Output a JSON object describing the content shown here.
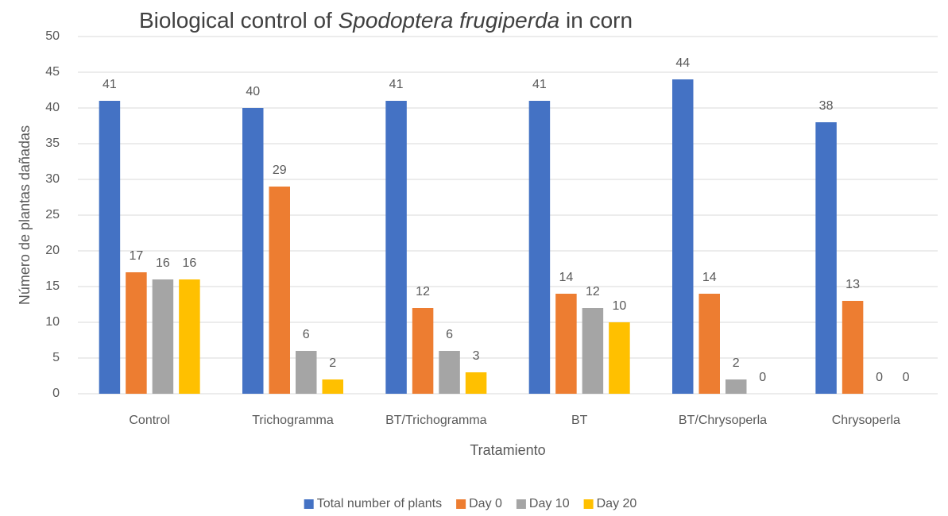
{
  "chart_data": {
    "type": "bar",
    "title": [
      "Biological control of ",
      "Spodoptera frugiperda",
      " in corn"
    ],
    "title_italic": [
      false,
      true,
      false
    ],
    "categories": [
      "Control",
      "Trichogramma",
      "BT/Trichogramma",
      "BT",
      "BT/Chrysoperla",
      "Chrysoperla"
    ],
    "series": [
      {
        "name": "Total number of plants",
        "color": "#4472c4",
        "values": [
          41,
          40,
          41,
          41,
          44,
          38
        ]
      },
      {
        "name": "Day 0",
        "color": "#ed7d31",
        "values": [
          17,
          29,
          12,
          14,
          14,
          13
        ]
      },
      {
        "name": "Day 10",
        "color": "#a5a5a5",
        "values": [
          16,
          6,
          6,
          12,
          2,
          0
        ]
      },
      {
        "name": "Day 20",
        "color": "#ffc000",
        "values": [
          16,
          2,
          3,
          10,
          0,
          0
        ]
      }
    ],
    "xlabel": "Tratamiento",
    "ylabel": "Número de plantas dañadas",
    "ylim": [
      0,
      50
    ],
    "yticks": [
      0,
      5,
      10,
      15,
      20,
      25,
      30,
      35,
      40,
      45,
      50
    ],
    "grid": true,
    "legend": "bottom"
  }
}
